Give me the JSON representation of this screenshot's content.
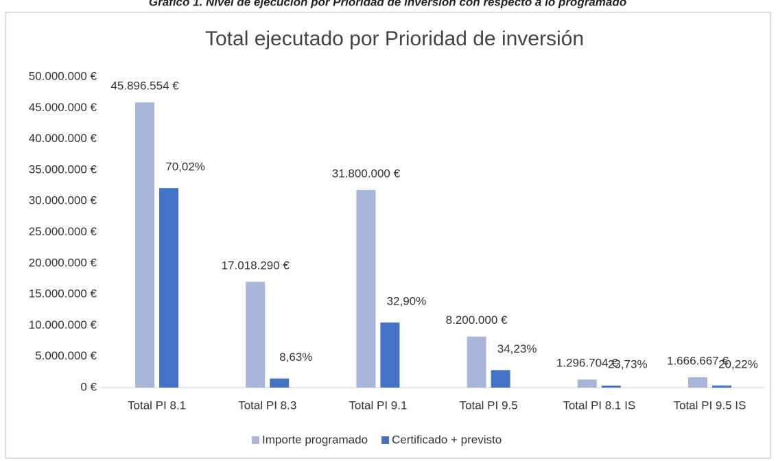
{
  "chart_data": {
    "type": "bar",
    "caption": "Gráfico 1. Nivel de ejecución por Prioridad de inversión con respecto a lo programado",
    "title": "Total ejecutado por Prioridad de inversión",
    "categories": [
      "Total PI 8.1",
      "Total PI 8.3",
      "Total PI 9.1",
      "Total PI 9.5",
      "Total PI 8.1 IS",
      "Total PI 9.5 IS"
    ],
    "series": [
      {
        "name": "Importe programado",
        "color": "#a9b6dc",
        "values": [
          45896554,
          17018290,
          31800000,
          8200000,
          1296704,
          1666667
        ],
        "value_labels": [
          "45.896.554 €",
          "17.018.290 €",
          "31.800.000 €",
          "8.200.000 €",
          "1.296.704 €",
          "1.666.667 €"
        ]
      },
      {
        "name": "Certificado + previsto",
        "color": "#4472c4",
        "values": [
          32100000,
          1470000,
          10460000,
          2810000,
          310000,
          340000
        ],
        "annotations": [
          "70,02%",
          "8,63%",
          "32,90%",
          "34,23%",
          "23,73%",
          "20,22%"
        ]
      }
    ],
    "ylim": [
      0,
      50000000
    ],
    "yticks": [
      {
        "value": 0,
        "label": "0 €"
      },
      {
        "value": 5000000,
        "label": "5.000.000 €"
      },
      {
        "value": 10000000,
        "label": "10.000.000 €"
      },
      {
        "value": 15000000,
        "label": "15.000.000 €"
      },
      {
        "value": 20000000,
        "label": "20.000.000 €"
      },
      {
        "value": 25000000,
        "label": "25.000.000 €"
      },
      {
        "value": 30000000,
        "label": "30.000.000 €"
      },
      {
        "value": 35000000,
        "label": "35.000.000 €"
      },
      {
        "value": 40000000,
        "label": "40.000.000 €"
      },
      {
        "value": 45000000,
        "label": "45.000.000 €"
      },
      {
        "value": 50000000,
        "label": "50.000.000 €"
      }
    ],
    "grid": false,
    "legend": "bottom"
  }
}
